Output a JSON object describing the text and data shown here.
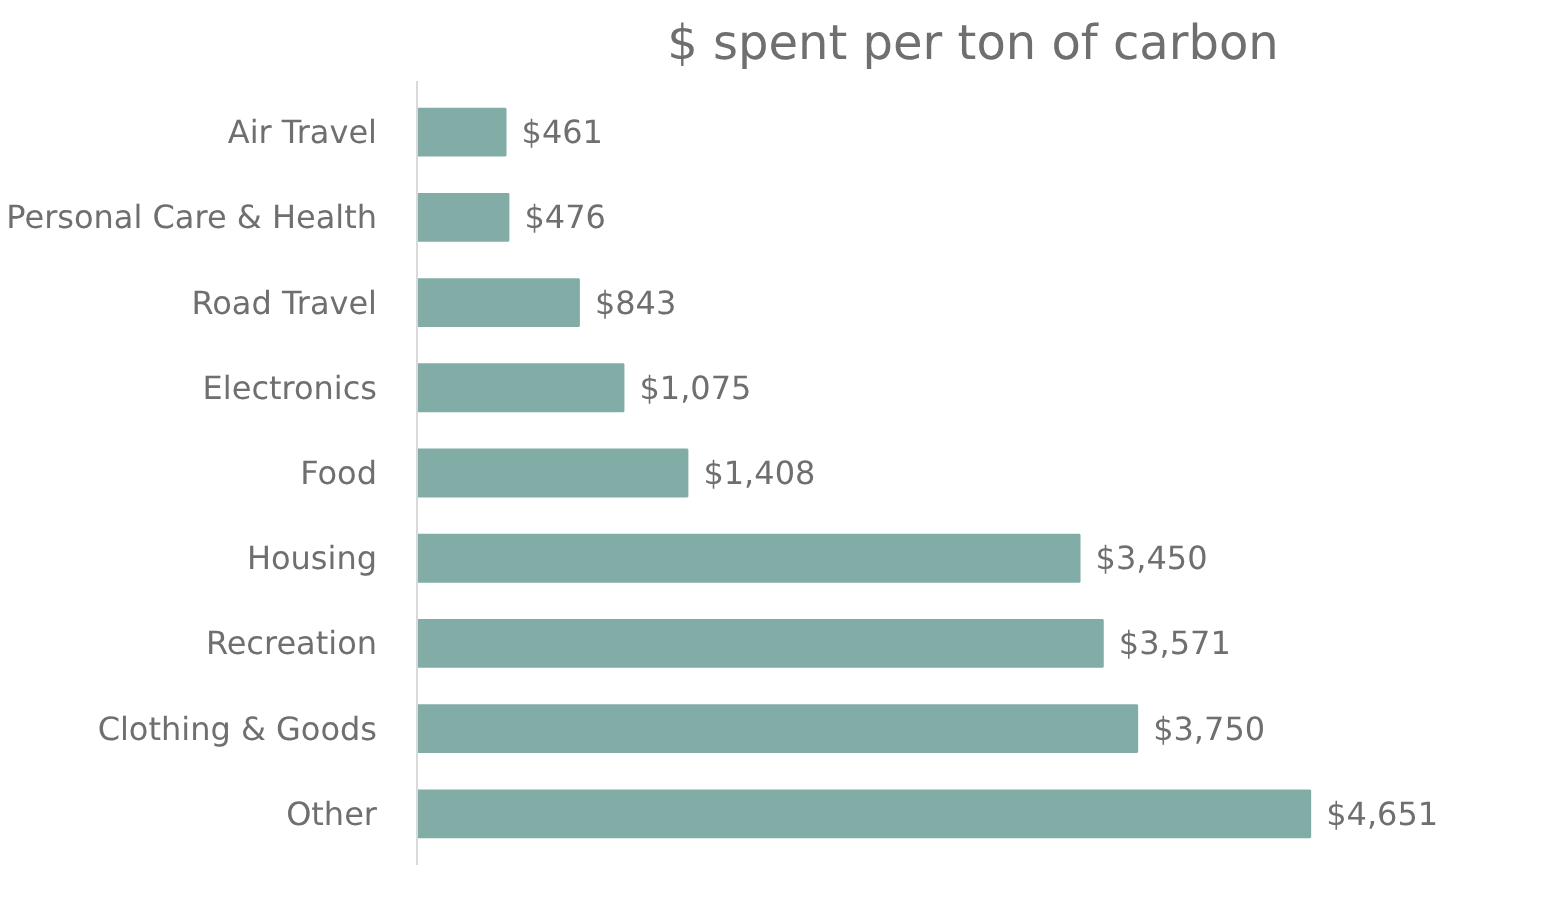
{
  "chart_data": {
    "type": "bar",
    "orientation": "horizontal",
    "title": "$ spent per ton of carbon",
    "categories": [
      "Air Travel",
      "Personal Care & Health",
      "Road Travel",
      "Electronics",
      "Food",
      "Housing",
      "Recreation",
      "Clothing & Goods",
      "Other"
    ],
    "values": [
      461,
      476,
      843,
      1075,
      1408,
      3450,
      3571,
      3750,
      4651
    ],
    "value_labels": [
      "$461",
      "$476",
      "$843",
      "$1,075",
      "$1,408",
      "$3,450",
      "$3,571",
      "$3,750",
      "$4,651"
    ],
    "color": "#82ada7"
  }
}
